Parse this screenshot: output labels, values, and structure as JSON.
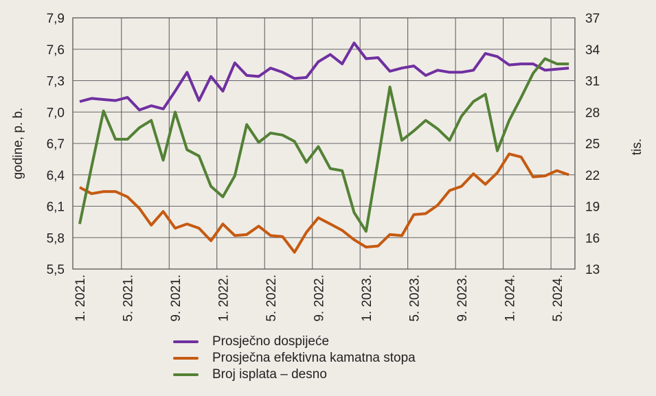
{
  "chart_data": {
    "type": "line",
    "title": "",
    "ylabel": "godine, p. b.",
    "ylabel_right": "tis.",
    "ylim": [
      5.5,
      7.9
    ],
    "ylim_right": [
      13,
      37
    ],
    "yticks": [
      "7,9",
      "7,6",
      "7,3",
      "7,0",
      "6,7",
      "6,4",
      "6,1",
      "5,8",
      "5,5"
    ],
    "yticks_right": [
      "37",
      "34",
      "31",
      "28",
      "25",
      "22",
      "19",
      "16",
      "13"
    ],
    "xtick_labels": [
      "1. 2021.",
      "5. 2021.",
      "9. 2021.",
      "1. 2022.",
      "5. 2022.",
      "9. 2022.",
      "1. 2023.",
      "5. 2023.",
      "9. 2023.",
      "1. 2024.",
      "5. 2024."
    ],
    "x_start": "1. 2021.",
    "x_frequency": "monthly",
    "grid": true,
    "legend_placement": "bottom",
    "series": [
      {
        "name": "Prosječno dospijeće",
        "axis": "left",
        "color": "#7030a0",
        "values": [
          7.1,
          7.13,
          7.12,
          7.11,
          7.14,
          7.02,
          7.06,
          7.03,
          7.2,
          7.38,
          7.11,
          7.34,
          7.2,
          7.47,
          7.35,
          7.34,
          7.42,
          7.38,
          7.32,
          7.33,
          7.48,
          7.55,
          7.46,
          7.66,
          7.51,
          7.52,
          7.39,
          7.42,
          7.44,
          7.35,
          7.4,
          7.38,
          7.38,
          7.4,
          7.56,
          7.53,
          7.45,
          7.46,
          7.46,
          7.4,
          7.41,
          7.42
        ]
      },
      {
        "name": "Prosječna efektivna kamatna stopa",
        "axis": "left",
        "color": "#c55a11",
        "values": [
          6.28,
          6.22,
          6.24,
          6.24,
          6.19,
          6.08,
          5.92,
          6.05,
          5.89,
          5.93,
          5.89,
          5.77,
          5.93,
          5.82,
          5.83,
          5.91,
          5.82,
          5.81,
          5.66,
          5.85,
          5.99,
          5.93,
          5.87,
          5.78,
          5.71,
          5.72,
          5.83,
          5.82,
          6.02,
          6.03,
          6.11,
          6.25,
          6.29,
          6.41,
          6.31,
          6.42,
          6.6,
          6.57,
          6.38,
          6.39,
          6.44,
          6.4
        ]
      },
      {
        "name": "Broj isplata – desno",
        "axis": "right",
        "color": "#538135",
        "values": [
          17.3,
          22.8,
          28.1,
          25.4,
          25.4,
          26.5,
          27.2,
          23.4,
          28.0,
          24.4,
          23.8,
          20.9,
          19.9,
          21.9,
          26.8,
          25.1,
          26.0,
          25.8,
          25.2,
          23.2,
          24.7,
          22.6,
          22.4,
          18.4,
          16.6,
          23.4,
          30.4,
          25.3,
          26.2,
          27.2,
          26.4,
          25.3,
          27.6,
          29.0,
          29.7,
          24.3,
          27.2,
          29.4,
          31.7,
          33.1,
          32.6,
          32.6
        ]
      }
    ]
  }
}
